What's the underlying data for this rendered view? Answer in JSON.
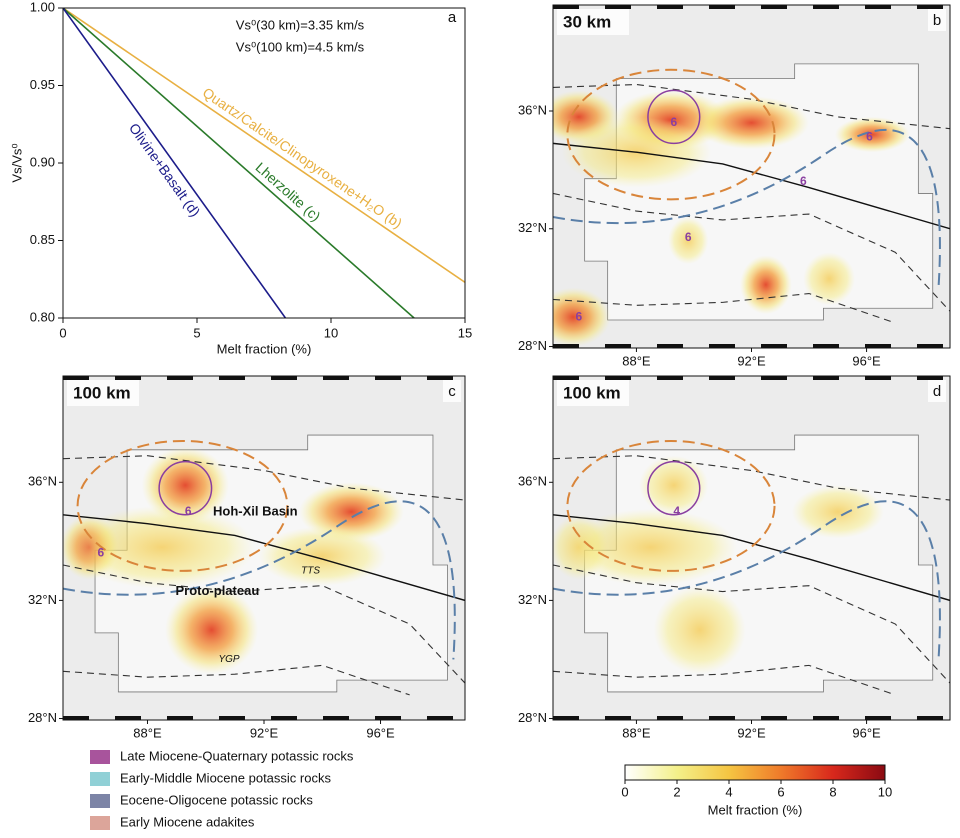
{
  "chart_data": [
    {
      "type": "line",
      "panel": "a",
      "xlabel": "Melt fraction (%)",
      "ylabel": "Vs/Vs⁰",
      "annotations": [
        "Vs⁰(30 km)=3.35 km/s",
        "Vs⁰(100 km)=4.5 km/s"
      ],
      "xlim": [
        0,
        15
      ],
      "ylim": [
        0.8,
        1.0
      ],
      "xticks": [
        0,
        5,
        10,
        15
      ],
      "yticks": [
        {
          "value": 0.8,
          "label": "0.80"
        },
        {
          "value": 0.85,
          "label": "0.85"
        },
        {
          "value": 0.9,
          "label": "0.90"
        },
        {
          "value": 0.95,
          "label": "0.95"
        },
        {
          "value": 1.0,
          "label": "1.00"
        }
      ],
      "series": [
        {
          "name": "Quartz/Calcite/Clinopyroxene+H₂O (b)",
          "color": "#e8b042",
          "x": [
            0,
            15
          ],
          "values": [
            1.0,
            0.823
          ]
        },
        {
          "name": "Lherzolite (c)",
          "color": "#2a7a2a",
          "x": [
            0,
            13.1
          ],
          "values": [
            1.0,
            0.8
          ]
        },
        {
          "name": "Olivine+Basalt (d)",
          "color": "#1c1c8a",
          "x": [
            0,
            8.3
          ],
          "values": [
            1.0,
            0.8
          ]
        }
      ]
    },
    {
      "type": "colorbar",
      "xlabel": "Melt fraction (%)",
      "xlim": [
        0,
        10
      ],
      "xticks": [
        0,
        2,
        4,
        6,
        8,
        10
      ],
      "colors": [
        "#ffffff",
        "#f4f08a",
        "#f5c542",
        "#ef7a2a",
        "#d8281c",
        "#8a0a12"
      ]
    }
  ],
  "maps": {
    "lonticks": [
      {
        "value": 88,
        "label": "88°E"
      },
      {
        "value": 92,
        "label": "92°E"
      },
      {
        "value": 96,
        "label": "96°E"
      }
    ],
    "latticks": [
      {
        "value": 28,
        "label": "28°N"
      },
      {
        "value": 32,
        "label": "32°N"
      },
      {
        "value": 36,
        "label": "36°N"
      }
    ],
    "lonlim": [
      85.1,
      98.9
    ],
    "latlim": [
      27.95,
      39.6
    ],
    "panels": [
      {
        "panel": "b",
        "depth": "30 km",
        "labels": [
          {
            "text": "6",
            "lon": 89.3,
            "lat": 35.6
          },
          {
            "text": "6",
            "lon": 96.1,
            "lat": 35.1
          },
          {
            "text": "6",
            "lon": 93.8,
            "lat": 33.6
          },
          {
            "text": "6",
            "lon": 89.8,
            "lat": 31.7
          },
          {
            "text": "6",
            "lon": 86.0,
            "lat": 29.0
          }
        ]
      },
      {
        "panel": "c",
        "depth": "100 km",
        "labels": [
          {
            "text": "6",
            "lon": 89.4,
            "lat": 35.0
          },
          {
            "text": "6",
            "lon": 86.4,
            "lat": 33.6
          },
          {
            "text": "Hoh-Xil Basin",
            "lon": 91.7,
            "lat": 35.0
          },
          {
            "text": "TTS",
            "lon": 93.6,
            "lat": 33.0
          },
          {
            "text": "Proto-plateau",
            "lon": 90.4,
            "lat": 32.3
          },
          {
            "text": "YGP",
            "lon": 90.8,
            "lat": 30.0
          }
        ]
      },
      {
        "panel": "d",
        "depth": "100 km",
        "labels": [
          {
            "text": "4",
            "lon": 89.4,
            "lat": 35.0
          }
        ]
      }
    ]
  },
  "legend": [
    {
      "name": "Late Miocene-Quaternary potassic rocks",
      "color": "#a8549c"
    },
    {
      "name": "Early-Middle Miocene potassic rocks",
      "color": "#90d0d6"
    },
    {
      "name": "Eocene-Oligocene potassic rocks",
      "color": "#7c84a6"
    },
    {
      "name": "Early Miocene adakites",
      "color": "#dca59a"
    }
  ]
}
